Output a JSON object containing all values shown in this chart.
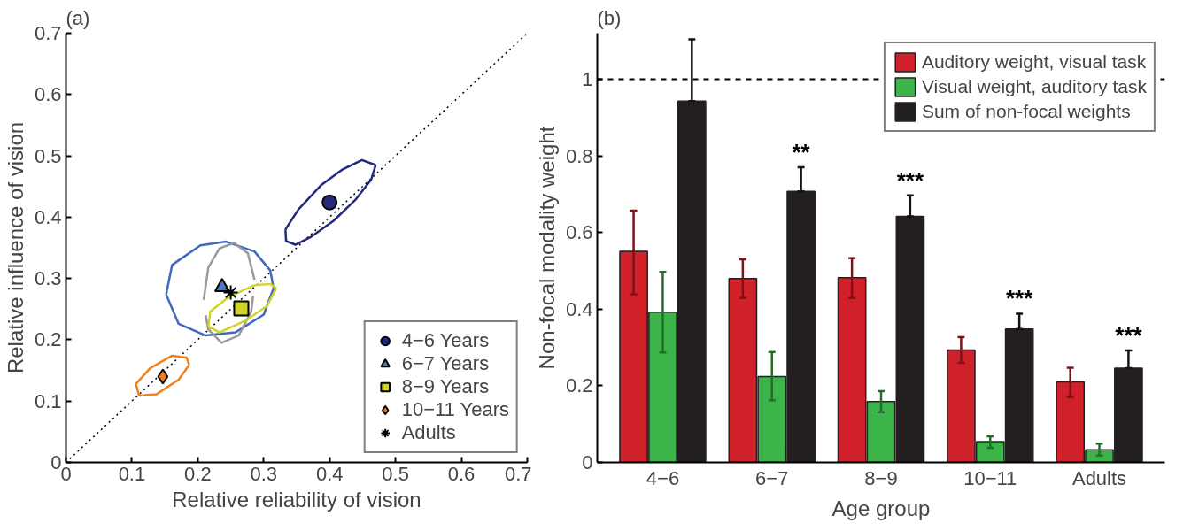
{
  "chart_data": [
    {
      "type": "scatter",
      "title": "(a)",
      "xlabel": "Relative reliability of vision",
      "ylabel": "Relative influence of vision",
      "xlim": [
        0,
        0.7
      ],
      "ylim": [
        0,
        0.7
      ],
      "xticks": [
        0,
        0.1,
        0.2,
        0.3,
        0.4,
        0.5,
        0.6,
        0.7
      ],
      "yticks": [
        0,
        0.1,
        0.2,
        0.3,
        0.4,
        0.5,
        0.6,
        0.7
      ],
      "grid": false,
      "legend": "bottom right",
      "series": [
        {
          "type": "line",
          "color": "#000000",
          "line_style": "dotted",
          "x": [
            0,
            0.7
          ],
          "values": [
            0,
            0.7
          ]
        },
        {
          "type": "line",
          "color": "#232a7c",
          "x": [
            0.333,
            0.353,
            0.387,
            0.42,
            0.449,
            0.47
          ],
          "values": [
            0.38,
            0.413,
            0.452,
            0.478,
            0.493,
            0.485
          ]
        },
        {
          "type": "line",
          "color": "#232a7c",
          "x": [
            0.333,
            0.334,
            0.348,
            0.372,
            0.406,
            0.439,
            0.463,
            0.47
          ],
          "values": [
            0.38,
            0.361,
            0.355,
            0.368,
            0.394,
            0.428,
            0.461,
            0.485
          ]
        },
        {
          "type": "line",
          "color": "#4169c0",
          "x": [
            0.152,
            0.161,
            0.204,
            0.243,
            0.286,
            0.31,
            0.315
          ],
          "values": [
            0.274,
            0.322,
            0.354,
            0.36,
            0.344,
            0.313,
            0.284
          ]
        },
        {
          "type": "line",
          "color": "#4169c0",
          "x": [
            0.152,
            0.171,
            0.212,
            0.257,
            0.3,
            0.315
          ],
          "values": [
            0.274,
            0.226,
            0.207,
            0.212,
            0.241,
            0.284
          ]
        },
        {
          "type": "line",
          "color": "#999999",
          "x": [
            0.209,
            0.216,
            0.233,
            0.255,
            0.276,
            0.286
          ],
          "values": [
            0.265,
            0.318,
            0.349,
            0.358,
            0.341,
            0.298
          ]
        },
        {
          "type": "line",
          "color": "#999999",
          "x": [
            0.212,
            0.216,
            0.236,
            0.262,
            0.281,
            0.284
          ],
          "values": [
            0.24,
            0.217,
            0.195,
            0.207,
            0.246,
            0.272
          ]
        },
        {
          "type": "line",
          "color": "#d0d42a",
          "x": [
            0.216,
            0.219,
            0.247,
            0.286,
            0.31,
            0.319
          ],
          "values": [
            0.222,
            0.246,
            0.27,
            0.289,
            0.291,
            0.284
          ]
        },
        {
          "type": "line",
          "color": "#d0d42a",
          "x": [
            0.216,
            0.233,
            0.272,
            0.305,
            0.319
          ],
          "values": [
            0.222,
            0.212,
            0.231,
            0.255,
            0.284
          ]
        },
        {
          "type": "line",
          "color": "#f0821e",
          "x": [
            0.106,
            0.128,
            0.161,
            0.183,
            0.187
          ],
          "values": [
            0.128,
            0.154,
            0.174,
            0.171,
            0.159
          ]
        },
        {
          "type": "line",
          "color": "#f0821e",
          "x": [
            0.106,
            0.111,
            0.137,
            0.171,
            0.187
          ],
          "values": [
            0.128,
            0.109,
            0.111,
            0.135,
            0.159
          ]
        },
        {
          "type": "scatter",
          "name": "4−6 Years",
          "color": "#232a7c",
          "marker": "circle",
          "x": [
            0.4
          ],
          "values": [
            0.424
          ]
        },
        {
          "type": "scatter",
          "name": "6−7 Years",
          "color": "#4a78c4",
          "marker": "triangle",
          "x": [
            0.237
          ],
          "values": [
            0.286
          ]
        },
        {
          "type": "scatter",
          "name": "8−9 Years",
          "color": "#d0d42a",
          "marker": "square",
          "x": [
            0.266
          ],
          "values": [
            0.251
          ]
        },
        {
          "type": "scatter",
          "name": "10−11 Years",
          "color": "#f07c1e",
          "marker": "diamond",
          "x": [
            0.147
          ],
          "values": [
            0.14
          ]
        },
        {
          "type": "scatter",
          "name": "Adults",
          "color": "#000000",
          "marker": "cross",
          "x": [
            0.25
          ],
          "values": [
            0.277
          ]
        }
      ]
    },
    {
      "type": "bar",
      "title": "(b)",
      "xlabel": "Age group",
      "ylabel": "Non-focal modality weight",
      "categories": [
        "4−6",
        "6−7",
        "8−9",
        "10−11",
        "Adults"
      ],
      "ylim": [
        0,
        1.12
      ],
      "yticks": [
        0,
        0.2,
        0.4,
        0.6,
        0.8,
        1
      ],
      "grid": false,
      "legend": "top right",
      "ref_lines": [
        {
          "axis": "y",
          "value": 1,
          "line_style": "dashed",
          "color": "#000000"
        }
      ],
      "annotations": [
        "**",
        "***",
        "***",
        "***"
      ],
      "series": [
        {
          "name": "Auditory weight, visual task",
          "color": "#d0202a",
          "values": [
            0.551,
            0.48,
            0.482,
            0.293,
            0.21
          ],
          "errors": [
            [
              0.439,
              0.657
            ],
            [
              0.429,
              0.53
            ],
            [
              0.429,
              0.533
            ],
            [
              0.26,
              0.327
            ],
            [
              0.17,
              0.247
            ]
          ]
        },
        {
          "name": "Visual weight, auditory task",
          "color": "#3cb44a",
          "values": [
            0.392,
            0.224,
            0.159,
            0.054,
            0.033
          ],
          "errors": [
            [
              0.287,
              0.497
            ],
            [
              0.162,
              0.288
            ],
            [
              0.131,
              0.186
            ],
            [
              0.038,
              0.068
            ],
            [
              0.018,
              0.049
            ]
          ]
        },
        {
          "name": "Sum of non-focal weights",
          "color": "#231f20",
          "values": [
            0.943,
            0.707,
            0.642,
            0.348,
            0.246
          ],
          "errors": [
            [
              0.943,
              1.104
            ],
            [
              0.707,
              0.77
            ],
            [
              0.642,
              0.697
            ],
            [
              0.348,
              0.388
            ],
            [
              0.246,
              0.292
            ]
          ]
        }
      ]
    }
  ]
}
